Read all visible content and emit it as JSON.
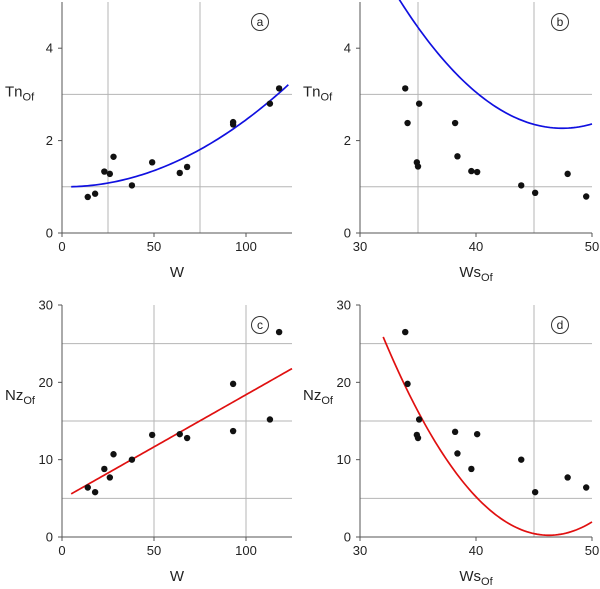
{
  "chart_data": [
    {
      "panel": "a",
      "type": "scatter",
      "xlabel": "W",
      "ylabel": "Tn",
      "ylabel_sub": "Of",
      "xlim": [
        0,
        125
      ],
      "ylim": [
        0,
        5
      ],
      "xticks": [
        0,
        50,
        100
      ],
      "yticks": [
        0,
        2,
        4
      ],
      "xgrid": [
        25,
        75,
        125
      ],
      "ygrid": [
        1,
        3,
        5
      ],
      "grid": true,
      "points": [
        [
          14,
          0.78
        ],
        [
          18,
          0.85
        ],
        [
          23,
          1.33
        ],
        [
          26,
          1.28
        ],
        [
          28,
          1.65
        ],
        [
          38,
          1.03
        ],
        [
          49,
          1.53
        ],
        [
          64,
          1.3
        ],
        [
          68,
          1.43
        ],
        [
          93,
          2.35
        ],
        [
          93,
          2.4
        ],
        [
          113,
          2.8
        ],
        [
          118,
          3.13
        ]
      ],
      "fit": {
        "kind": "quadratic",
        "x": [
          5,
          123
        ],
        "coef": [
          1.0,
          -0.0005,
          0.00015
        ],
        "color": "#1010e0"
      }
    },
    {
      "panel": "b",
      "type": "scatter",
      "xlabel": "Ws",
      "xlabel_sub": "Of",
      "ylabel": "Tn",
      "ylabel_sub": "Of",
      "xlim": [
        30,
        50
      ],
      "ylim": [
        0,
        5
      ],
      "xticks": [
        30,
        40,
        50
      ],
      "yticks": [
        0,
        2,
        4
      ],
      "xgrid": [
        35,
        45
      ],
      "ygrid": [
        1,
        3,
        5
      ],
      "grid": true,
      "points": [
        [
          33.9,
          3.13
        ],
        [
          34.1,
          2.38
        ],
        [
          34.9,
          1.53
        ],
        [
          35,
          1.44
        ],
        [
          35.1,
          2.8
        ],
        [
          38.2,
          2.38
        ],
        [
          38.4,
          1.66
        ],
        [
          39.6,
          1.34
        ],
        [
          40.1,
          1.32
        ],
        [
          43.9,
          1.03
        ],
        [
          45.1,
          0.87
        ],
        [
          47.9,
          1.28
        ],
        [
          49.5,
          0.79
        ]
      ],
      "fit": {
        "kind": "quadratic",
        "x": [
          32,
          50
        ],
        "coef": [
          34.03,
          -1.3392,
          0.014116
        ],
        "color": "#1010e0"
      }
    },
    {
      "panel": "c",
      "type": "scatter",
      "xlabel": "W",
      "ylabel": "Nz",
      "ylabel_sub": "Of",
      "xlim": [
        0,
        125
      ],
      "ylim": [
        0,
        30
      ],
      "xticks": [
        0,
        50,
        100
      ],
      "yticks": [
        0,
        10,
        20,
        30
      ],
      "xgrid": [
        50,
        100
      ],
      "ygrid": [
        5,
        15,
        25
      ],
      "grid": true,
      "points": [
        [
          14,
          6.4
        ],
        [
          18,
          5.8
        ],
        [
          23,
          8.8
        ],
        [
          26,
          7.7
        ],
        [
          28,
          10.7
        ],
        [
          38,
          10.0
        ],
        [
          49,
          13.2
        ],
        [
          64,
          13.3
        ],
        [
          68,
          12.8
        ],
        [
          93,
          13.7
        ],
        [
          93,
          19.8
        ],
        [
          113,
          15.2
        ],
        [
          118,
          26.5
        ]
      ],
      "fit": {
        "kind": "quadratic",
        "x": [
          5,
          125
        ],
        "coef": [
          4.9,
          0.135,
          0
        ],
        "color": "#e01010"
      }
    },
    {
      "panel": "d",
      "type": "scatter",
      "xlabel": "Ws",
      "xlabel_sub": "Of",
      "ylabel": "Nz",
      "ylabel_sub": "Of",
      "xlim": [
        30,
        50
      ],
      "ylim": [
        0,
        30
      ],
      "xticks": [
        30,
        40,
        50
      ],
      "yticks": [
        0,
        10,
        20,
        30
      ],
      "xgrid": [
        45
      ],
      "ygrid": [
        5,
        15,
        25
      ],
      "grid": true,
      "points": [
        [
          33.9,
          26.5
        ],
        [
          34.1,
          19.8
        ],
        [
          34.9,
          13.2
        ],
        [
          35,
          12.8
        ],
        [
          35.1,
          15.2
        ],
        [
          38.2,
          13.6
        ],
        [
          38.4,
          10.8
        ],
        [
          39.6,
          8.8
        ],
        [
          40.1,
          13.3
        ],
        [
          43.9,
          10.0
        ],
        [
          45.1,
          5.8
        ],
        [
          47.9,
          7.7
        ],
        [
          49.5,
          6.4
        ]
      ],
      "fit": {
        "kind": "quadratic",
        "x": [
          32,
          50
        ],
        "coef": [
          269.2,
          -11.62,
          0.1255
        ],
        "color": "#e01010"
      }
    }
  ]
}
